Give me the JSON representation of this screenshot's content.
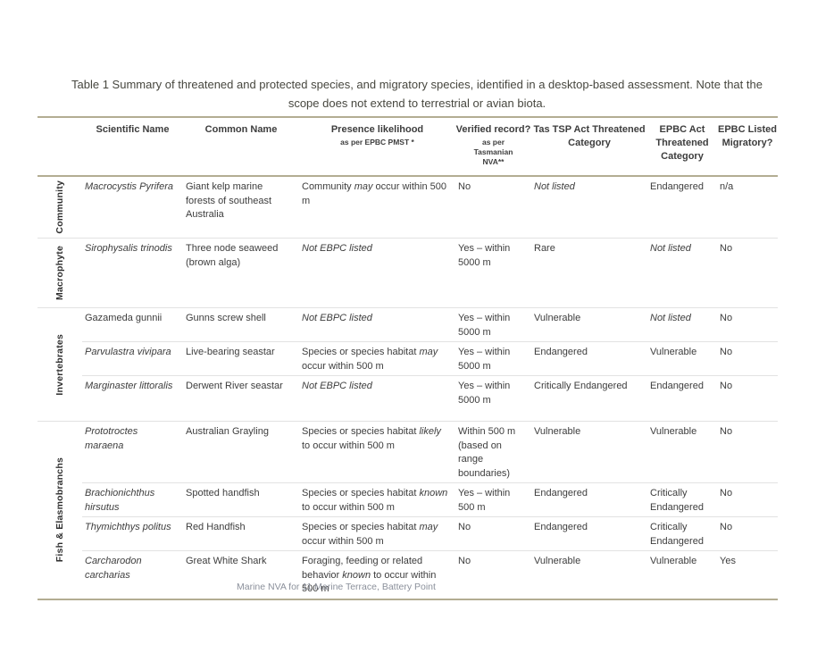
{
  "document": {
    "caption": "Table 1 Summary of threatened and protected species, and migratory species, identified in a desktop-based assessment.  Note that the scope does not extend to terrestrial or avian biota.",
    "footer": "Marine NVA for 11 Marine Terrace, Battery Point"
  },
  "colors": {
    "rule": "#b3ad92",
    "divider": "#e2e2e2",
    "text": "#3d3d3d",
    "footer_text": "#8b909b"
  },
  "table": {
    "columns": [
      {
        "title": "Scientific Name",
        "sub": ""
      },
      {
        "title": "Common Name",
        "sub": ""
      },
      {
        "title": "Presence likelihood",
        "sub": "as per EPBC PMST *"
      },
      {
        "title": "Verified record?",
        "sub": "as per Tasmanian NVA**"
      },
      {
        "title": "Tas TSP Act Threatened Category",
        "sub": ""
      },
      {
        "title": "EPBC Act Threatened Category",
        "sub": ""
      },
      {
        "title": "EPBC Listed Migratory?",
        "sub": ""
      }
    ],
    "groups": [
      {
        "label": "Community",
        "rows": [
          {
            "scientific": [
              {
                "t": "Macrocystis Pyrifera",
                "i": true
              }
            ],
            "common": "Giant kelp marine forests of southeast Australia",
            "presence": [
              {
                "t": "Community ",
                "i": false
              },
              {
                "t": "may",
                "i": true
              },
              {
                "t": " occur within 500 m",
                "i": false
              }
            ],
            "verified": "No",
            "tas_tsp": [
              {
                "t": "Not listed",
                "i": true
              }
            ],
            "epbc": [
              {
                "t": "Endangered",
                "i": false
              }
            ],
            "migratory": "n/a"
          }
        ]
      },
      {
        "label": "Macrophyte",
        "rows": [
          {
            "scientific": [
              {
                "t": "Sirophysalis trinodis",
                "i": true
              }
            ],
            "common": "Three node seaweed (brown alga)",
            "presence": [
              {
                "t": "Not EBPC listed",
                "i": true
              }
            ],
            "verified": "Yes – within 5000 m",
            "tas_tsp": [
              {
                "t": "Rare",
                "i": false
              }
            ],
            "epbc": [
              {
                "t": "Not listed",
                "i": true
              }
            ],
            "migratory": "No"
          }
        ]
      },
      {
        "label": "Invertebrates",
        "rows": [
          {
            "scientific": [
              {
                "t": "Gazameda gunnii",
                "i": false
              }
            ],
            "common": "Gunns screw shell",
            "presence": [
              {
                "t": "Not EBPC listed",
                "i": true
              }
            ],
            "verified": "Yes – within 5000 m",
            "tas_tsp": [
              {
                "t": "Vulnerable",
                "i": false
              }
            ],
            "epbc": [
              {
                "t": "Not listed",
                "i": true
              }
            ],
            "migratory": "No"
          },
          {
            "scientific": [
              {
                "t": "Parvulastra vivipara",
                "i": true
              }
            ],
            "common": "Live-bearing seastar",
            "presence": [
              {
                "t": "Species or species habitat ",
                "i": false
              },
              {
                "t": "may",
                "i": true
              },
              {
                "t": " occur within 500 m",
                "i": false
              }
            ],
            "verified": "Yes – within 5000 m",
            "tas_tsp": [
              {
                "t": "Endangered",
                "i": false
              }
            ],
            "epbc": [
              {
                "t": "Vulnerable",
                "i": false
              }
            ],
            "migratory": "No"
          },
          {
            "scientific": [
              {
                "t": "Marginaster littoralis",
                "i": true
              }
            ],
            "common": "Derwent River seastar",
            "presence": [
              {
                "t": "Not EBPC listed",
                "i": true
              }
            ],
            "verified": "Yes – within 5000 m",
            "tas_tsp": [
              {
                "t": "Critically Endangered",
                "i": false
              }
            ],
            "epbc": [
              {
                "t": "Endangered",
                "i": false
              }
            ],
            "migratory": "No"
          }
        ]
      },
      {
        "label": "Fish & Elasmobranchs",
        "rows": [
          {
            "scientific": [
              {
                "t": "Prototroctes maraena",
                "i": true
              }
            ],
            "common": "Australian Grayling",
            "presence": [
              {
                "t": "Species or species habitat ",
                "i": false
              },
              {
                "t": "likely",
                "i": true
              },
              {
                "t": " to occur within 500 m",
                "i": false
              }
            ],
            "verified": "Within 500 m (based on range boundaries)",
            "tas_tsp": [
              {
                "t": "Vulnerable",
                "i": false
              }
            ],
            "epbc": [
              {
                "t": "Vulnerable",
                "i": false
              }
            ],
            "migratory": "No"
          },
          {
            "scientific": [
              {
                "t": "Brachionichthus hirsutus",
                "i": true
              }
            ],
            "common": "Spotted handfish",
            "presence": [
              {
                "t": "Species or species habitat ",
                "i": false
              },
              {
                "t": "known",
                "i": true
              },
              {
                "t": " to occur within 500 m",
                "i": false
              }
            ],
            "verified": "Yes – within 500 m",
            "tas_tsp": [
              {
                "t": "Endangered",
                "i": false
              }
            ],
            "epbc": [
              {
                "t": "Critically Endangered",
                "i": false
              }
            ],
            "migratory": "No"
          },
          {
            "scientific": [
              {
                "t": "Thymichthys politus",
                "i": true
              }
            ],
            "common": "Red Handfish",
            "presence": [
              {
                "t": "Species or species habitat ",
                "i": false
              },
              {
                "t": "may",
                "i": true
              },
              {
                "t": " occur within 500 m",
                "i": false
              }
            ],
            "verified": "No",
            "tas_tsp": [
              {
                "t": "Endangered",
                "i": false
              }
            ],
            "epbc": [
              {
                "t": "Critically Endangered",
                "i": false
              }
            ],
            "migratory": "No"
          },
          {
            "scientific": [
              {
                "t": "Carcharodon carcharias",
                "i": true
              }
            ],
            "common": "Great White Shark",
            "presence": [
              {
                "t": "Foraging, feeding or related behavior ",
                "i": false
              },
              {
                "t": "known",
                "i": true
              },
              {
                "t": " to occur within 500 m",
                "i": false
              }
            ],
            "verified": "No",
            "tas_tsp": [
              {
                "t": "Vulnerable",
                "i": false
              }
            ],
            "epbc": [
              {
                "t": "Vulnerable",
                "i": false
              }
            ],
            "migratory": "Yes"
          }
        ]
      }
    ]
  }
}
